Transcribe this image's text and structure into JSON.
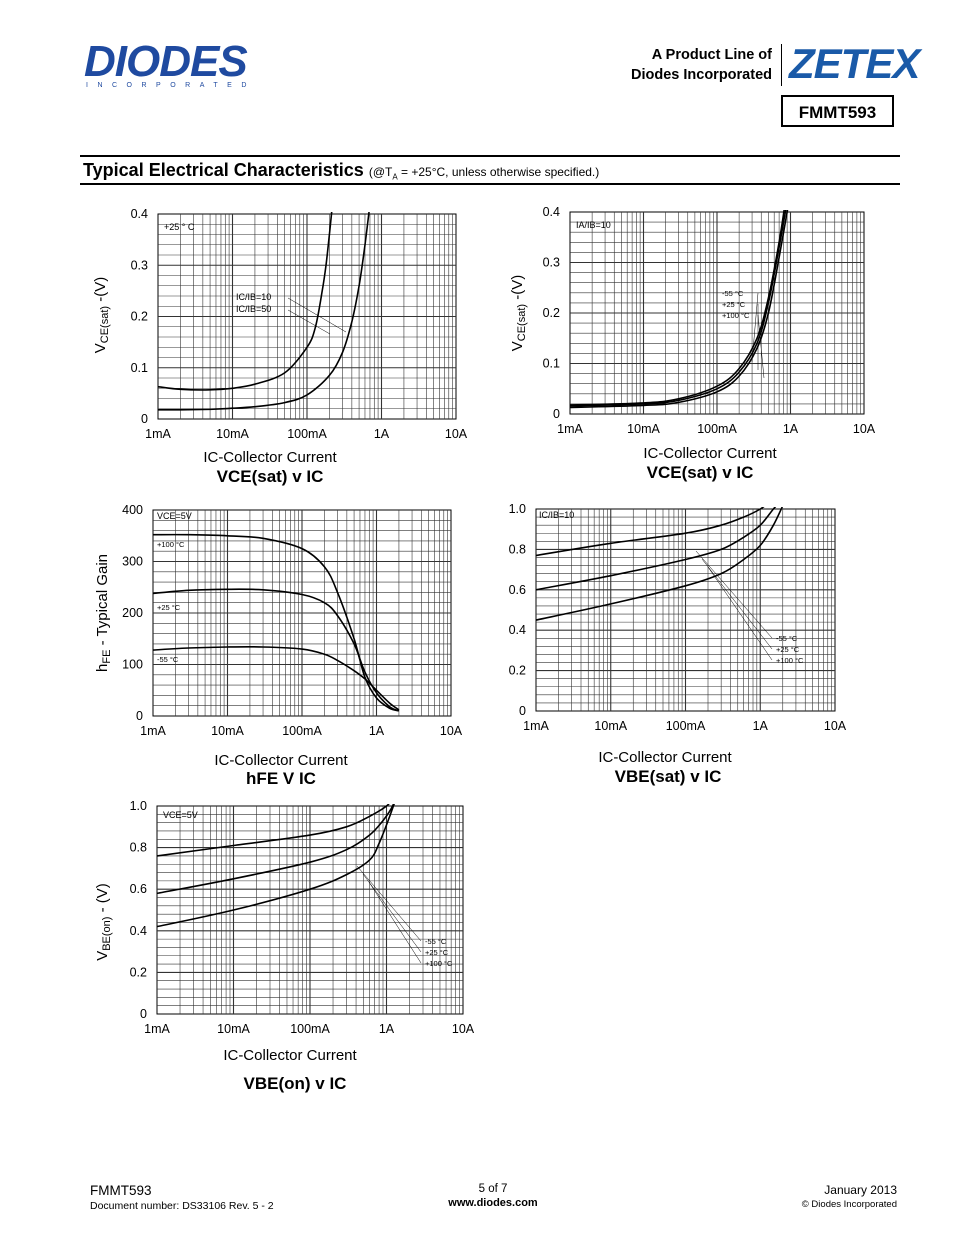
{
  "header": {
    "logo_text": "DIODES",
    "logo_sub": "INCORPORATED",
    "product_line_1": "A Product Line of",
    "product_line_2": "Diodes Incorporated",
    "zetex_logo": "ZETEX",
    "part_number": "FMMT593"
  },
  "section": {
    "title": "Typical Electrical Characteristics",
    "note_prefix": "(@T",
    "note_sub": "A",
    "note_suffix": " = +25°C, unless otherwise specified.)"
  },
  "chart_data": [
    {
      "id": "vcesat_ic_temp",
      "type": "line",
      "title": "VCE(sat) v IC",
      "xlabel": "IC-Collector Current",
      "ylabel": "VCE(sat) -(V)",
      "x_scale": "log",
      "xlim": [
        0.001,
        10
      ],
      "ylim": [
        0,
        0.4
      ],
      "x_ticks": [
        "1mA",
        "10mA",
        "100mA",
        "1A",
        "10A"
      ],
      "y_ticks": [
        "0",
        "0.1",
        "0.2",
        "0.3",
        "0.4"
      ],
      "annotations": [
        "+25 ° C",
        "IC/IB=10",
        "IC/IB=50"
      ],
      "series": [
        {
          "name": "IC/IB=10",
          "x": [
            0.001,
            0.002,
            0.005,
            0.01,
            0.02,
            0.05,
            0.1,
            0.2,
            0.3,
            0.4,
            0.5,
            0.6,
            0.7
          ],
          "y": [
            0.018,
            0.018,
            0.019,
            0.021,
            0.024,
            0.032,
            0.047,
            0.085,
            0.13,
            0.19,
            0.26,
            0.34,
            0.42
          ]
        },
        {
          "name": "IC/IB=50",
          "x": [
            0.001,
            0.002,
            0.005,
            0.01,
            0.02,
            0.05,
            0.1,
            0.13,
            0.16,
            0.18,
            0.2,
            0.22
          ],
          "y": [
            0.063,
            0.058,
            0.057,
            0.06,
            0.068,
            0.09,
            0.14,
            0.18,
            0.25,
            0.3,
            0.36,
            0.42
          ]
        }
      ]
    },
    {
      "id": "vcesat_ic",
      "type": "line",
      "title": "VCE(sat) v IC",
      "xlabel": "IC-Collector Current",
      "ylabel": "VCE(sat) -(V)",
      "x_scale": "log",
      "xlim": [
        0.001,
        10
      ],
      "ylim": [
        0,
        0.4
      ],
      "x_ticks": [
        "1mA",
        "10mA",
        "100mA",
        "1A",
        "10A"
      ],
      "y_ticks": [
        "0",
        "0.1",
        "0.2",
        "0.3",
        "0.4"
      ],
      "annotations": [
        "IA/IB=10"
      ],
      "series": [
        {
          "name": "-55 °C",
          "x": [
            0.001,
            0.01,
            0.03,
            0.1,
            0.2,
            0.35,
            0.5,
            0.7,
            0.85
          ],
          "y": [
            0.018,
            0.022,
            0.03,
            0.055,
            0.09,
            0.15,
            0.23,
            0.34,
            0.42
          ]
        },
        {
          "name": "+25 °C",
          "x": [
            0.001,
            0.01,
            0.03,
            0.1,
            0.2,
            0.35,
            0.5,
            0.7,
            0.9
          ],
          "y": [
            0.016,
            0.02,
            0.027,
            0.05,
            0.083,
            0.14,
            0.22,
            0.33,
            0.42
          ]
        },
        {
          "name": "+100 °C",
          "x": [
            0.001,
            0.01,
            0.03,
            0.1,
            0.2,
            0.35,
            0.5,
            0.7,
            0.95
          ],
          "y": [
            0.013,
            0.017,
            0.023,
            0.044,
            0.075,
            0.13,
            0.2,
            0.31,
            0.42
          ]
        }
      ]
    },
    {
      "id": "hfe_ic",
      "type": "line",
      "title": "hFE V IC",
      "xlabel": "IC-Collector Current",
      "ylabel": "hFE - Typical Gain",
      "x_scale": "log",
      "xlim": [
        0.001,
        10
      ],
      "ylim": [
        0,
        400
      ],
      "x_ticks": [
        "1mA",
        "10mA",
        "100mA",
        "1A",
        "10A"
      ],
      "y_ticks": [
        "0",
        "100",
        "200",
        "300",
        "400"
      ],
      "annotations": [
        "VCE=5V"
      ],
      "series": [
        {
          "name": "+100 °C",
          "x": [
            0.001,
            0.003,
            0.01,
            0.03,
            0.1,
            0.2,
            0.3,
            0.5,
            0.7,
            1,
            1.5,
            2
          ],
          "y": [
            352,
            352,
            350,
            345,
            325,
            290,
            240,
            150,
            75,
            35,
            15,
            10
          ]
        },
        {
          "name": "+25 °C",
          "x": [
            0.001,
            0.003,
            0.01,
            0.03,
            0.1,
            0.2,
            0.3,
            0.5,
            0.7,
            1,
            1.5,
            2
          ],
          "y": [
            238,
            244,
            246,
            245,
            236,
            220,
            195,
            140,
            85,
            45,
            18,
            10
          ]
        },
        {
          "name": "-55 °C",
          "x": [
            0.001,
            0.003,
            0.01,
            0.03,
            0.1,
            0.2,
            0.3,
            0.5,
            0.7,
            1,
            1.5,
            2
          ],
          "y": [
            128,
            132,
            134,
            134,
            130,
            120,
            108,
            88,
            72,
            50,
            25,
            12
          ]
        }
      ]
    },
    {
      "id": "vbesat_ic",
      "type": "line",
      "title": "VBE(sat) v IC",
      "xlabel": "IC-Collector Current",
      "ylabel": "",
      "x_scale": "log",
      "xlim": [
        0.001,
        10
      ],
      "ylim": [
        0,
        1.0
      ],
      "x_ticks": [
        "1mA",
        "10mA",
        "100mA",
        "1A",
        "10A"
      ],
      "y_ticks": [
        "0",
        "0.2",
        "0.4",
        "0.6",
        "0.8",
        "1.0"
      ],
      "annotations": [
        "IC/IB=10"
      ],
      "series": [
        {
          "name": "-55 °C",
          "x": [
            0.001,
            0.01,
            0.1,
            0.3,
            0.6,
            1,
            1.5
          ],
          "y": [
            0.77,
            0.83,
            0.88,
            0.92,
            0.96,
            1.0,
            1.05
          ]
        },
        {
          "name": "+25 °C",
          "x": [
            0.001,
            0.01,
            0.1,
            0.3,
            0.6,
            1,
            1.5,
            2.0
          ],
          "y": [
            0.6,
            0.67,
            0.75,
            0.8,
            0.86,
            0.92,
            1.0,
            1.05
          ]
        },
        {
          "name": "+100 °C",
          "x": [
            0.001,
            0.01,
            0.1,
            0.3,
            0.6,
            1,
            1.5,
            2.2
          ],
          "y": [
            0.45,
            0.53,
            0.62,
            0.68,
            0.75,
            0.82,
            0.92,
            1.05
          ]
        }
      ]
    },
    {
      "id": "vbeon_ic",
      "type": "line",
      "title": "VBE(on) v IC",
      "xlabel": "IC-Collector Current",
      "ylabel": "VBE(on) - (V)",
      "x_scale": "log",
      "xlim": [
        0.001,
        10
      ],
      "ylim": [
        0,
        1.0
      ],
      "x_ticks": [
        "1mA",
        "10mA",
        "100mA",
        "1A",
        "10A"
      ],
      "y_ticks": [
        "0",
        "0.2",
        "0.4",
        "0.6",
        "0.8",
        "1.0"
      ],
      "annotations": [
        "VCE=5V"
      ],
      "series": [
        {
          "name": "-55 °C",
          "x": [
            0.001,
            0.01,
            0.1,
            0.3,
            0.6,
            1,
            1.3,
            1.6
          ],
          "y": [
            0.76,
            0.81,
            0.86,
            0.9,
            0.95,
            1.0,
            1.05,
            1.12
          ]
        },
        {
          "name": "+25 °C",
          "x": [
            0.001,
            0.01,
            0.1,
            0.3,
            0.6,
            0.9,
            1.2,
            1.6
          ],
          "y": [
            0.58,
            0.65,
            0.73,
            0.79,
            0.86,
            0.93,
            1.0,
            1.12
          ]
        },
        {
          "name": "+100 °C",
          "x": [
            0.001,
            0.01,
            0.1,
            0.3,
            0.6,
            0.8,
            1.1,
            1.6
          ],
          "y": [
            0.42,
            0.5,
            0.6,
            0.67,
            0.74,
            0.82,
            0.95,
            1.12
          ]
        }
      ]
    }
  ],
  "footer": {
    "part": "FMMT593",
    "doc_number": "Document number: DS33106 Rev. 5 - 2",
    "page": "5 of 7",
    "website": "www.diodes.com",
    "date": "January 2013",
    "copyright": "© Diodes Incorporated"
  },
  "colors": {
    "diodes_blue": "#1f4aa0",
    "zetex_blue": "#1a5aa8",
    "grid": "#333333"
  }
}
